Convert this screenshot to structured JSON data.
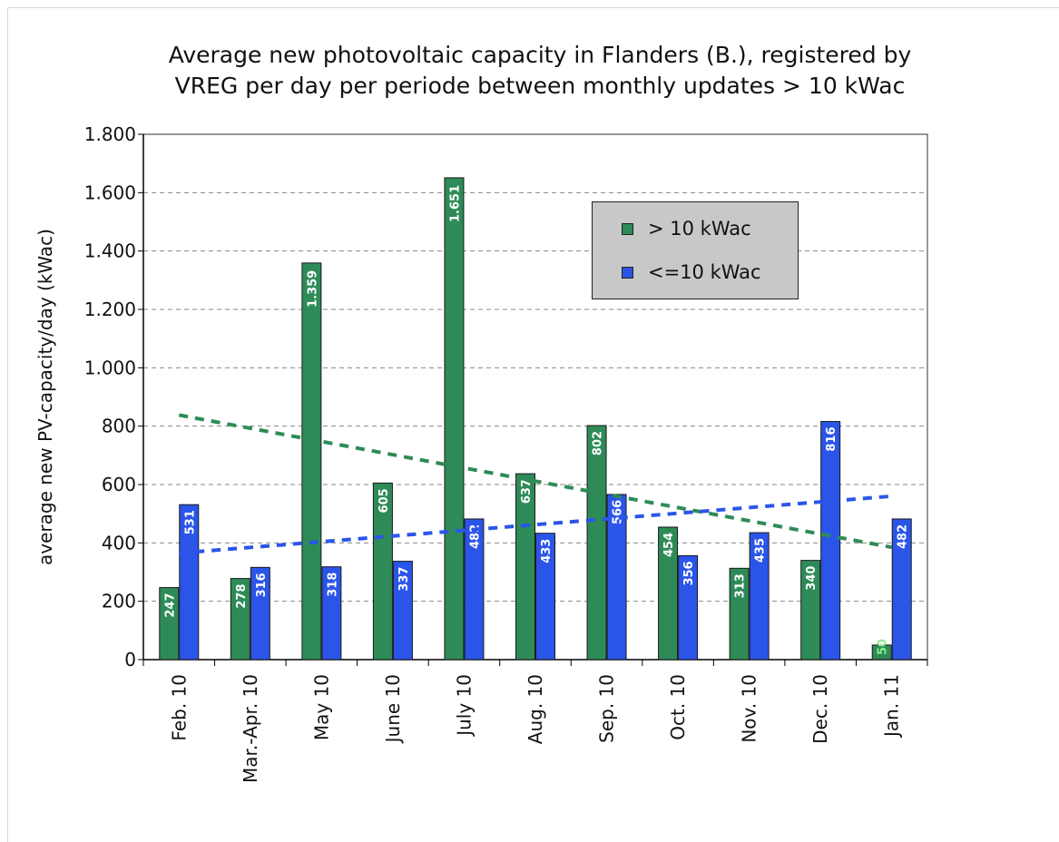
{
  "chart_data": {
    "type": "bar",
    "title": "Average new photovoltaic capacity in Flanders (B.), registered by VREG per day per periode between monthly updates > 10 kWac",
    "title_lines": [
      "Average new photovoltaic capacity in Flanders (B.), registered by",
      "VREG per day per periode between monthly updates > 10 kWac"
    ],
    "xlabel": "",
    "ylabel": "average new PV-capacity/day (kWac)",
    "ylim": [
      0,
      1800
    ],
    "yticks": [
      0,
      200,
      400,
      600,
      800,
      1000,
      1200,
      1400,
      1600,
      1800
    ],
    "ytick_labels": [
      "0",
      "200",
      "400",
      "600",
      "800",
      "1.000",
      "1.200",
      "1.400",
      "1.600",
      "1.800"
    ],
    "categories": [
      "Feb. 10",
      "Mar.-Apr. 10",
      "May 10",
      "June 10",
      "July 10",
      "Aug. 10",
      "Sep. 10",
      "Oct. 10",
      "Nov. 10",
      "Dec. 10",
      "Jan. 11"
    ],
    "series": [
      {
        "name": "> 10 kWac",
        "color": "#2e8b57",
        "values": [
          247,
          278,
          1359,
          605,
          1651,
          637,
          802,
          454,
          313,
          340,
          50
        ],
        "labels": [
          "247",
          "278",
          "1.359",
          "605",
          "1.651",
          "637",
          "802",
          "454",
          "313",
          "340",
          "50"
        ],
        "trendline": [
          838,
          385
        ]
      },
      {
        "name": "<=10 kWac",
        "color": "#2b55e8",
        "values": [
          531,
          316,
          318,
          337,
          482,
          433,
          566,
          356,
          435,
          816,
          482
        ],
        "labels": [
          "531",
          "316",
          "318",
          "337",
          "482",
          "433",
          "566",
          "356",
          "435",
          "816",
          "482"
        ],
        "trendline": [
          365,
          560
        ]
      }
    ],
    "grid": true,
    "legend_position": "top-right"
  }
}
